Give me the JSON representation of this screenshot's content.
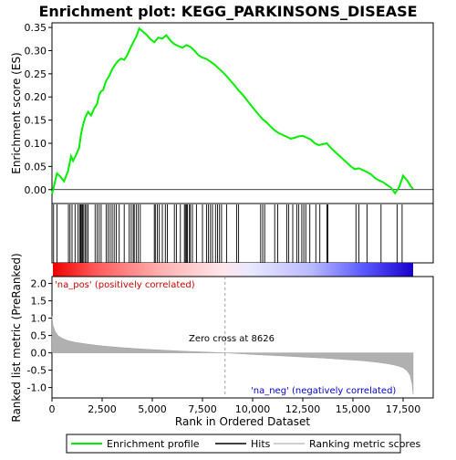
{
  "chart_data": {
    "type": "line",
    "title": "Enrichment plot: KEGG_PARKINSONS_DISEASE",
    "xlabel": "Rank in Ordered Dataset",
    "es_panel": {
      "ylabel": "Enrichment score (ES)",
      "ylim": [
        -0.03,
        0.36
      ],
      "yticks": [
        0.0,
        0.05,
        0.1,
        0.15,
        0.2,
        0.25,
        0.3,
        0.35
      ],
      "ytick_labels": [
        "0.00",
        "0.05",
        "0.10",
        "0.15",
        "0.20",
        "0.25",
        "0.30",
        "0.35"
      ],
      "series": [
        {
          "name": "Enrichment profile",
          "color": "#00ee00",
          "x": [
            0,
            250,
            420,
            600,
            800,
            950,
            1050,
            1200,
            1350,
            1450,
            1550,
            1650,
            1800,
            1950,
            2100,
            2250,
            2350,
            2450,
            2550,
            2700,
            2850,
            3000,
            3150,
            3300,
            3450,
            3600,
            3750,
            3900,
            4050,
            4200,
            4350,
            4500,
            4700,
            4900,
            5100,
            5300,
            5500,
            5700,
            5900,
            6100,
            6300,
            6500,
            6700,
            6900,
            7100,
            7300,
            7500,
            7700,
            7900,
            8100,
            8300,
            8500,
            8700,
            8900,
            9100,
            9300,
            9500,
            9700,
            9900,
            10100,
            10300,
            10500,
            10700,
            10900,
            11100,
            11300,
            11500,
            11700,
            11900,
            12100,
            12300,
            12500,
            12700,
            12900,
            13100,
            13300,
            13500,
            13700,
            13900,
            14100,
            14300,
            14500,
            14700,
            14900,
            15100,
            15300,
            15500,
            15700,
            15900,
            16100,
            16300,
            16500,
            16700,
            16900,
            17100,
            17300,
            17500,
            17700,
            17900,
            18000
          ],
          "y": [
            -0.01,
            0.035,
            0.028,
            0.018,
            0.04,
            0.072,
            0.062,
            0.075,
            0.09,
            0.12,
            0.14,
            0.155,
            0.168,
            0.16,
            0.175,
            0.185,
            0.205,
            0.212,
            0.215,
            0.235,
            0.245,
            0.26,
            0.27,
            0.278,
            0.283,
            0.28,
            0.29,
            0.305,
            0.318,
            0.33,
            0.348,
            0.342,
            0.335,
            0.325,
            0.318,
            0.328,
            0.326,
            0.333,
            0.322,
            0.314,
            0.31,
            0.306,
            0.312,
            0.308,
            0.3,
            0.29,
            0.285,
            0.282,
            0.276,
            0.27,
            0.262,
            0.254,
            0.245,
            0.235,
            0.225,
            0.214,
            0.205,
            0.194,
            0.183,
            0.172,
            0.162,
            0.152,
            0.145,
            0.136,
            0.128,
            0.122,
            0.118,
            0.114,
            0.11,
            0.112,
            0.115,
            0.116,
            0.112,
            0.108,
            0.1,
            0.096,
            0.098,
            0.1,
            0.09,
            0.082,
            0.074,
            0.066,
            0.058,
            0.05,
            0.044,
            0.046,
            0.042,
            0.038,
            0.033,
            0.025,
            0.02,
            0.016,
            0.01,
            0.004,
            -0.008,
            0.005,
            0.03,
            0.02,
            0.006,
            0.002
          ]
        }
      ],
      "hits": [
        80,
        250,
        820,
        900,
        1000,
        1150,
        1300,
        1380,
        1430,
        1470,
        1520,
        1580,
        1650,
        1720,
        1800,
        2150,
        2250,
        2350,
        2450,
        2700,
        2800,
        2900,
        3000,
        3100,
        3200,
        3350,
        3600,
        3850,
        3950,
        4050,
        4100,
        4200,
        4300,
        4400,
        5100,
        5150,
        5250,
        5350,
        5500,
        5650,
        5750,
        6100,
        6200,
        6400,
        6600,
        6650,
        6700,
        6750,
        6850,
        6900,
        7000,
        7200,
        7500,
        7700,
        7800,
        7900,
        8000,
        8150,
        8250,
        8350,
        8450,
        8700,
        9200,
        9300,
        10400,
        10500,
        10600,
        11100,
        11250,
        11700,
        11800,
        12000,
        12200,
        12300,
        12450,
        12550,
        12650,
        12850,
        13150,
        13350,
        13700,
        13750,
        15150,
        15300,
        15700,
        16400,
        17200,
        17450
      ]
    },
    "metric_panel": {
      "ylabel": "Ranked list metric (PreRanked)",
      "ylim": [
        -1.3,
        2.2
      ],
      "yticks": [
        -1.0,
        -0.5,
        0.0,
        0.5,
        1.0,
        1.5,
        2.0
      ],
      "ytick_labels": [
        "-1.0",
        "-0.5",
        "0.0",
        "0.5",
        "1.0",
        "1.5",
        "2.0"
      ],
      "metric_x": [
        0,
        50,
        150,
        300,
        500,
        800,
        1200,
        1800,
        2500,
        3500,
        4500,
        5500,
        6500,
        7500,
        8626,
        9500,
        10500,
        11500,
        12500,
        13500,
        14500,
        15500,
        16200,
        16800,
        17200,
        17500,
        17700,
        17850,
        17950,
        18000
      ],
      "metric_y": [
        1.05,
        0.8,
        0.62,
        0.5,
        0.42,
        0.35,
        0.3,
        0.25,
        0.2,
        0.15,
        0.11,
        0.08,
        0.05,
        0.025,
        0.0,
        -0.03,
        -0.06,
        -0.09,
        -0.12,
        -0.15,
        -0.19,
        -0.23,
        -0.27,
        -0.32,
        -0.37,
        -0.43,
        -0.52,
        -0.65,
        -0.9,
        -1.2
      ],
      "zero_cross_label": "Zero cross at 8626",
      "zero_cross": 8626,
      "pos_label": "'na_pos' (positively correlated)",
      "neg_label": "'na_neg' (negatively correlated)",
      "pos_color": "#cc0000",
      "neg_color": "#0000cc"
    },
    "x_range": [
      0,
      19000
    ],
    "xticks": [
      0,
      2500,
      5000,
      7500,
      10000,
      12500,
      15000,
      17500
    ],
    "xtick_labels": [
      "0",
      "2,500",
      "5,000",
      "7,500",
      "10,000",
      "12,500",
      "15,000",
      "17,500"
    ],
    "n_genes": 18000,
    "legend": [
      {
        "label": "Enrichment profile",
        "color": "#00ee00"
      },
      {
        "label": "Hits",
        "color": "#000000"
      },
      {
        "label": "Ranking metric scores",
        "color": "#c0c0c0"
      }
    ],
    "legend_position": "bottom"
  }
}
